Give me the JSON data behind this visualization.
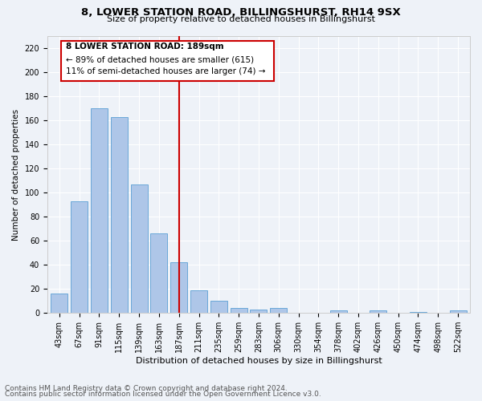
{
  "title": "8, LOWER STATION ROAD, BILLINGSHURST, RH14 9SX",
  "subtitle": "Size of property relative to detached houses in Billingshurst",
  "xlabel": "Distribution of detached houses by size in Billingshurst",
  "ylabel": "Number of detached properties",
  "categories": [
    "43sqm",
    "67sqm",
    "91sqm",
    "115sqm",
    "139sqm",
    "163sqm",
    "187sqm",
    "211sqm",
    "235sqm",
    "259sqm",
    "283sqm",
    "306sqm",
    "330sqm",
    "354sqm",
    "378sqm",
    "402sqm",
    "426sqm",
    "450sqm",
    "474sqm",
    "498sqm",
    "522sqm"
  ],
  "values": [
    16,
    93,
    170,
    163,
    107,
    66,
    42,
    19,
    10,
    4,
    3,
    4,
    0,
    0,
    2,
    0,
    2,
    0,
    1,
    0,
    2
  ],
  "bar_color": "#aec6e8",
  "bar_edge_color": "#5a9fd4",
  "vline_x": 6,
  "vline_color": "#cc0000",
  "annotation_title": "8 LOWER STATION ROAD: 189sqm",
  "annotation_line1": "← 89% of detached houses are smaller (615)",
  "annotation_line2": "11% of semi-detached houses are larger (74) →",
  "annotation_box_color": "#cc0000",
  "ylim": [
    0,
    230
  ],
  "yticks": [
    0,
    20,
    40,
    60,
    80,
    100,
    120,
    140,
    160,
    180,
    200,
    220
  ],
  "footer1": "Contains HM Land Registry data © Crown copyright and database right 2024.",
  "footer2": "Contains public sector information licensed under the Open Government Licence v3.0.",
  "plot_bg_color": "#eef2f8",
  "fig_bg_color": "#eef2f8",
  "title_fontsize": 9.5,
  "subtitle_fontsize": 8,
  "xlabel_fontsize": 8,
  "ylabel_fontsize": 7.5,
  "tick_fontsize": 7,
  "footer_fontsize": 6.5,
  "ann_fontsize": 7.5
}
